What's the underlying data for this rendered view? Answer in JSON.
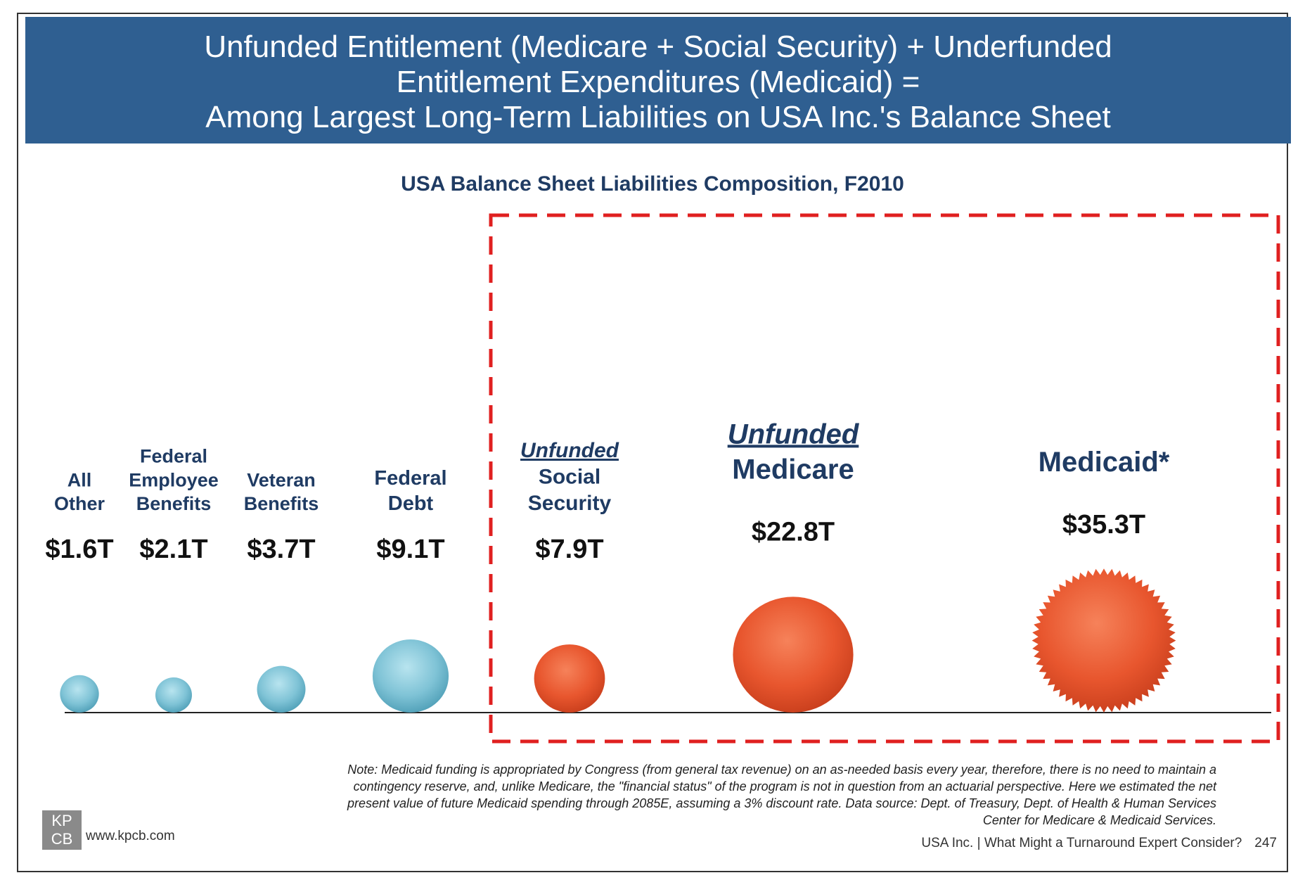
{
  "header": {
    "title_lines": [
      "Unfunded Entitlement (Medicare + Social Security) + Underfunded",
      "Entitlement Expenditures (Medicaid) =",
      "Among Largest Long-Term Liabilities on USA Inc.'s Balance Sheet"
    ]
  },
  "chart_data": {
    "type": "bubble",
    "title": "USA Balance Sheet Liabilities Composition, F2010",
    "unit": "$T",
    "categories": [
      {
        "label_lines": [
          "All",
          "Other"
        ],
        "value": 1.6,
        "value_label": "$1.6T",
        "group": "other",
        "color": "#7fc3d6"
      },
      {
        "label_lines": [
          "Federal",
          "Employee",
          "Benefits"
        ],
        "value": 2.1,
        "value_label": "$2.1T",
        "group": "other",
        "color": "#7fc3d6"
      },
      {
        "label_lines": [
          "Veteran",
          "Benefits"
        ],
        "value": 3.7,
        "value_label": "$3.7T",
        "group": "other",
        "color": "#7fc3d6"
      },
      {
        "label_lines": [
          "Federal",
          "Debt"
        ],
        "value": 9.1,
        "value_label": "$9.1T",
        "group": "other",
        "color": "#7fc3d6"
      },
      {
        "label_lines": [
          "Unfunded",
          "Social",
          "Security"
        ],
        "value": 7.9,
        "value_label": "$7.9T",
        "group": "entitlement",
        "color": "#e8562e",
        "emphasis_first_line": true
      },
      {
        "label_lines": [
          "Unfunded",
          "Medicare"
        ],
        "value": 22.8,
        "value_label": "$22.8T",
        "group": "entitlement",
        "color": "#e8562e",
        "emphasis_first_line": true
      },
      {
        "label_lines": [
          "Medicaid*"
        ],
        "value": 35.3,
        "value_label": "$35.3T",
        "group": "entitlement",
        "color": "#e8562e",
        "emphasis_first_line": false,
        "starburst": true
      }
    ],
    "highlight_box_color": "#e02020"
  },
  "note": "Note: Medicaid funding is appropriated by Congress (from general tax revenue) on an as-needed basis every year, therefore, there is no need to maintain a contingency reserve, and, unlike Medicare, the \"financial status\" of the program is not in question from an actuarial perspective. Here we estimated the net present value of future Medicaid spending through 2085E, assuming a 3% discount rate. Data source: Dept. of Treasury, Dept. of Health & Human Services Center for Medicare & Medicaid Services.",
  "footer": {
    "logo_text": [
      "KP",
      "CB"
    ],
    "url": "www.kpcb.com",
    "source_line": "USA Inc. | What Might a Turnaround Expert Consider?",
    "page_number": "247"
  }
}
